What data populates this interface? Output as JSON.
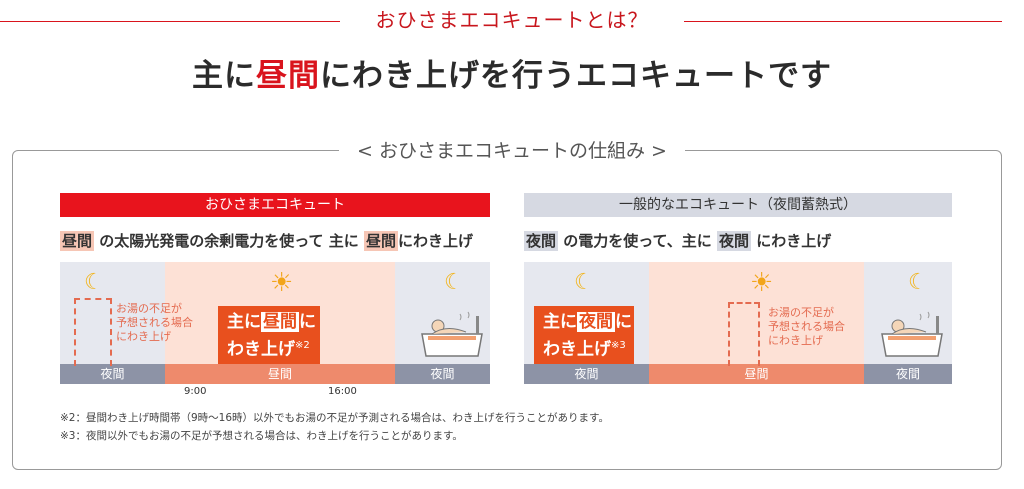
{
  "heading": "おひさまエコキュートとは？",
  "title": {
    "prefix": "主に",
    "highlight": "昼間",
    "suffix": "にわき上げを行うエコキュートです"
  },
  "section_title": "< おひさまエコキュートの仕組み >",
  "left": {
    "header": "おひさまエコキュート",
    "sub": {
      "t1": "昼間",
      "p1": "の太陽光発電の余剰電力を使って 主に",
      "t2": "昼間",
      "p2": "にわき上げ"
    },
    "note": [
      "お湯の不足が",
      "予想される場合",
      "にわき上げ"
    ],
    "box": {
      "l1a": "主に",
      "l1tag": "昼間",
      "l1b": "に",
      "l2": "わき上げ",
      "mark": "※2"
    },
    "bars": [
      "夜間",
      "昼間",
      "夜間"
    ],
    "times": [
      "9:00",
      "16:00"
    ]
  },
  "right": {
    "header": "一般的なエコキュート（夜間蓄熱式）",
    "sub": {
      "t1": "夜間",
      "p1": "の電力を使って、主に",
      "t2": "夜間",
      "p2": "にわき上げ"
    },
    "note": [
      "お湯の不足が",
      "予想される場合",
      "にわき上げ"
    ],
    "box": {
      "l1a": "主に",
      "l1tag": "夜間",
      "l1b": "に",
      "l2": "わき上げ",
      "mark": "※3"
    },
    "bars": [
      "夜間",
      "昼間",
      "夜間"
    ]
  },
  "footnotes": [
    "※2：昼間わき上げ時間帯（9時〜16時）以外でもお湯の不足が予測される場合は、わき上げを行うことがあります。",
    "※3：夜間以外でもお湯の不足が予想される場合は、わき上げを行うことがあります。"
  ],
  "icons": {
    "moon": "moon-icon",
    "sun": "sun-icon",
    "bath": "bath-icon"
  },
  "colors": {
    "accent": "#d9141d",
    "orange": "#e8501e",
    "day_bg": "#fde1d6",
    "night_bg": "#e6e8ef"
  }
}
